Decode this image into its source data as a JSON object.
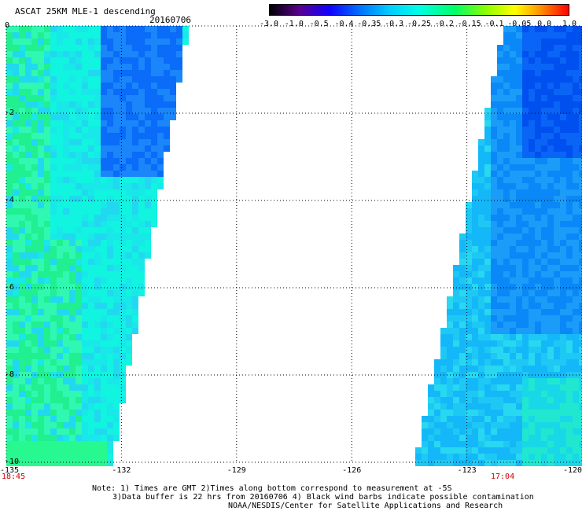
{
  "header": {
    "title": "ASCAT 25KM MLE-1 descending",
    "date": "20160706"
  },
  "colorbar": {
    "labels": [
      "-3.0",
      "-1.0",
      "-0.5",
      "-0.4",
      "-0.35",
      "-0.3",
      "-0.25",
      "-0.2",
      "-0.15",
      "-0.1",
      "-0.05",
      "0.0",
      "1.0"
    ]
  },
  "axes": {
    "lat_labels": [
      "0",
      "-2",
      "-4",
      "-6",
      "-8",
      "-10"
    ],
    "lon_labels": [
      "-135",
      "-132",
      "-129",
      "-126",
      "-123",
      "-120"
    ]
  },
  "times": {
    "left": "18:45",
    "right": "17:04"
  },
  "notes": {
    "line1": "Note: 1) Times are GMT 2)Times along bottom correspond to measurement at -5S",
    "line2": "3)Data buffer is 22 hrs from 20160706 4) Black wind barbs indicate possible contamination",
    "line3": "NOAA/NESDIS/Center for Satellite Applications and Research"
  },
  "colors": {
    "time_label": "#cc0000",
    "grid": "#000000"
  }
}
